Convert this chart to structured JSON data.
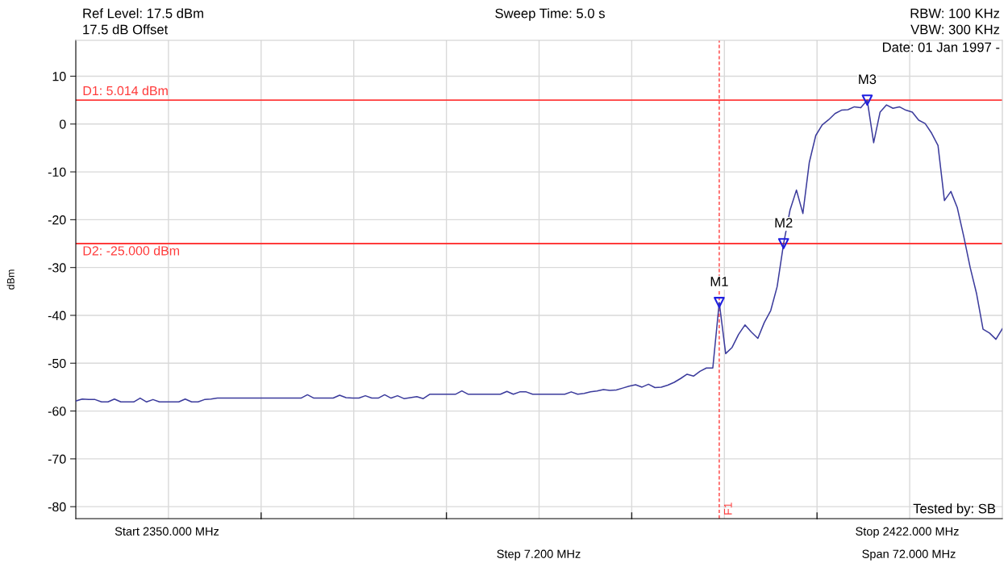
{
  "chart_data": {
    "type": "line",
    "ylabel": "dBm",
    "ylim": [
      -82.5,
      17.5
    ],
    "yticks": [
      -80,
      -70,
      -60,
      -50,
      -40,
      -30,
      -20,
      -10,
      0,
      10
    ],
    "grid": true,
    "legend": false,
    "categories": [
      null,
      null,
      null,
      null,
      null,
      null,
      null,
      null,
      null,
      null,
      null,
      null,
      null,
      null,
      null,
      null,
      null,
      null,
      null,
      null,
      null,
      null,
      null,
      null,
      null,
      null,
      null,
      null,
      null,
      null,
      null,
      null,
      null,
      null,
      null,
      null,
      null,
      null,
      null,
      null,
      null,
      null,
      null,
      null,
      null,
      null,
      null,
      null,
      null,
      null,
      null,
      null,
      null,
      null,
      null,
      null,
      null,
      null,
      null,
      null,
      null,
      null,
      null,
      null,
      null,
      null,
      null,
      null,
      null,
      null,
      null,
      null,
      null,
      null,
      null,
      null,
      null,
      null,
      null,
      null,
      null,
      null,
      null,
      null,
      null,
      null,
      null,
      null,
      null,
      null,
      null,
      null,
      null,
      null,
      null,
      null,
      null,
      null,
      null,
      null,
      null,
      null,
      null,
      null,
      null,
      null,
      null,
      null,
      null,
      null,
      null,
      null,
      null,
      null,
      null,
      null,
      null,
      null,
      null,
      null,
      null,
      null,
      null,
      null,
      null,
      null,
      null,
      null,
      null,
      null,
      null,
      null,
      null,
      null,
      null,
      null,
      null,
      null,
      null,
      null,
      null,
      null,
      null,
      null,
      null
    ],
    "series": [
      {
        "color": "#3b3b9c",
        "line_style": "solid",
        "marker": "none",
        "values": [
          -57.9,
          -57.5,
          -57.6,
          -57.6,
          -58.1,
          -58.1,
          -57.5,
          -58.1,
          -58.1,
          -58.1,
          -57.3,
          -58.1,
          -57.6,
          -58.1,
          -58.1,
          -58.1,
          -58.1,
          -57.5,
          -58.1,
          -58.1,
          -57.6,
          -57.5,
          -57.3,
          -57.3,
          -57.3,
          -57.3,
          -57.3,
          -57.3,
          -57.3,
          -57.3,
          -57.3,
          -57.3,
          -57.3,
          -57.3,
          -57.3,
          -57.3,
          -56.6,
          -57.3,
          -57.3,
          -57.3,
          -57.3,
          -56.7,
          -57.2,
          -57.3,
          -57.3,
          -56.8,
          -57.3,
          -57.3,
          -56.6,
          -57.3,
          -56.8,
          -57.4,
          -57.2,
          -57.0,
          -57.4,
          -56.5,
          -56.5,
          -56.5,
          -56.5,
          -56.5,
          -55.8,
          -56.5,
          -56.5,
          -56.5,
          -56.5,
          -56.5,
          -56.5,
          -55.9,
          -56.5,
          -56.0,
          -56.0,
          -56.5,
          -56.5,
          -56.5,
          -56.5,
          -56.5,
          -56.5,
          -56.0,
          -56.5,
          -56.3,
          -56.0,
          -55.8,
          -55.5,
          -55.7,
          -55.6,
          -55.2,
          -54.8,
          -54.5,
          -55.0,
          -54.4,
          -55.1,
          -55.0,
          -54.6,
          -54.0,
          -53.2,
          -52.3,
          -52.7,
          -51.7,
          -51.0,
          -51.0,
          -37.3,
          -48.0,
          -46.7,
          -44.0,
          -42.0,
          -43.5,
          -44.8,
          -41.5,
          -39.0,
          -34.0,
          -25.0,
          -18.0,
          -13.8,
          -18.7,
          -8.0,
          -2.4,
          -0.2,
          0.9,
          2.2,
          2.9,
          3.0,
          3.6,
          3.4,
          5.0,
          -3.9,
          2.5,
          4.0,
          3.3,
          3.6,
          2.9,
          2.5,
          0.8,
          0.1,
          -1.9,
          -4.5,
          -16.0,
          -14.1,
          -17.5,
          -23.5,
          -30.0,
          -35.5,
          -42.9,
          -43.7,
          -45.0,
          -42.8
        ]
      },
      {
        "type": "scatter",
        "color": "#1f1fe0",
        "marker": "triangle",
        "values": [
          null,
          null,
          null,
          null,
          null,
          null,
          null,
          null,
          null,
          null,
          null,
          null,
          null,
          null,
          null,
          null,
          null,
          null,
          null,
          null,
          null,
          null,
          null,
          null,
          null,
          null,
          null,
          null,
          null,
          null,
          null,
          null,
          null,
          null,
          null,
          null,
          null,
          null,
          null,
          null,
          null,
          null,
          null,
          null,
          null,
          null,
          null,
          null,
          null,
          null,
          null,
          null,
          null,
          null,
          null,
          null,
          null,
          null,
          null,
          null,
          null,
          null,
          null,
          null,
          null,
          null,
          null,
          null,
          null,
          null,
          null,
          null,
          null,
          null,
          null,
          null,
          null,
          null,
          null,
          null,
          null,
          null,
          null,
          null,
          null,
          null,
          null,
          null,
          null,
          null,
          null,
          null,
          null,
          null,
          null,
          null,
          null,
          null,
          null,
          null,
          -37.3,
          null,
          null,
          null,
          null,
          null,
          null,
          null,
          null,
          null,
          -25.0,
          null,
          null,
          null,
          null,
          null,
          null,
          null,
          null,
          null,
          null,
          null,
          null,
          5.0,
          null,
          null,
          null,
          null,
          null,
          null,
          null,
          null,
          null,
          null,
          null,
          null,
          null,
          null,
          null,
          null,
          null,
          null,
          null,
          null,
          null
        ]
      }
    ],
    "ref_lines": [
      {
        "axis": "y",
        "value": 5.014,
        "label": "D1: 5.014 dBm",
        "color": "#ff3b3b",
        "line_style": "solid"
      },
      {
        "axis": "y",
        "value": -25.0,
        "label": "D2: -25.000 dBm",
        "color": "#ff3b3b",
        "line_style": "solid"
      },
      {
        "axis": "x",
        "label": "F1",
        "color": "#ff3b3b",
        "line_style": "dashed"
      }
    ],
    "annotations": [
      "Ref Level: 17.5 dBm",
      "17.5 dB Offset",
      "Sweep Time: 5.0 s",
      "RBW: 100 KHz",
      "VBW: 300 KHz",
      "Date: 01 Jan 1997 -",
      "Start 2350.000 MHz",
      "Step 7.200 MHz",
      "Stop 2422.000 MHz",
      "Span 72.000 MHz",
      "Tested by: SB",
      {
        "text": "M1",
        "y": -37.3
      },
      {
        "text": "M2",
        "y": -25.0
      },
      {
        "text": "M3",
        "y": 5.0
      }
    ]
  }
}
